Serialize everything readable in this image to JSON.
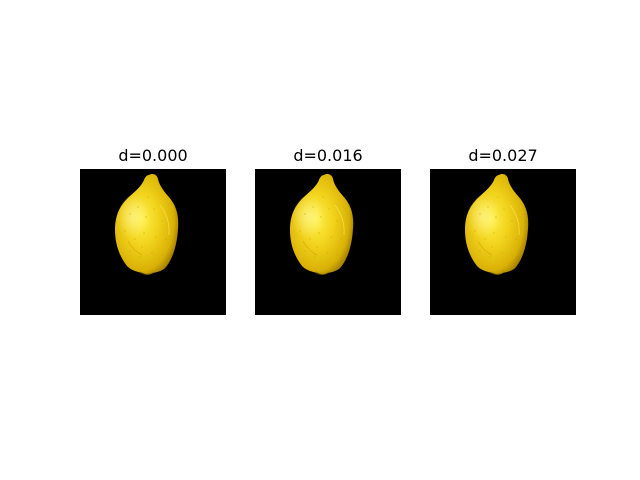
{
  "panels": [
    {
      "title": "d=0.000"
    },
    {
      "title": "d=0.016"
    },
    {
      "title": "d=0.027"
    }
  ],
  "colors": {
    "background": "#ffffff",
    "image_background": "#000000",
    "lemon": "#f2d21a"
  },
  "icons": [
    "lemon"
  ]
}
